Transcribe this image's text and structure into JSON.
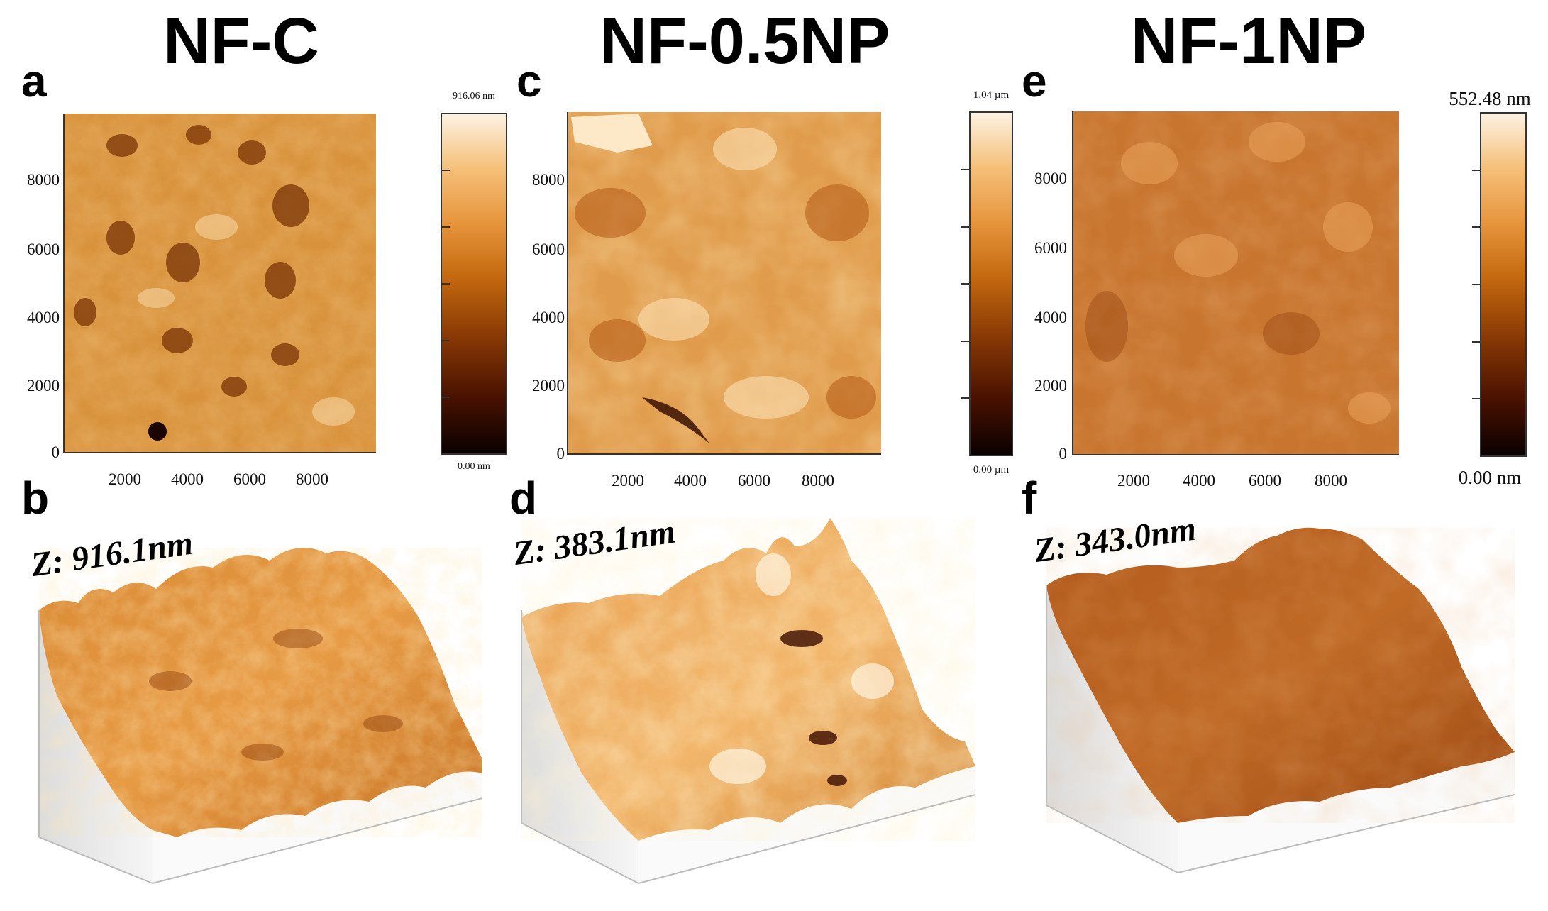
{
  "panels": [
    {
      "title": "NF-C",
      "map_label": "a",
      "surface_label": "b",
      "z_range_label": "Z: 916.1nm",
      "colorbar": {
        "max": "916.06 nm",
        "min": "0.00 nm"
      },
      "y_ticks": [
        "8000",
        "6000",
        "4000",
        "2000",
        "0"
      ],
      "x_ticks": [
        "2000",
        "4000",
        "6000",
        "8000"
      ]
    },
    {
      "title": "NF-0.5NP",
      "map_label": "c",
      "surface_label": "d",
      "z_range_label": "Z: 383.1nm",
      "colorbar": {
        "max": "1.04 µm",
        "min": "0.00 µm"
      },
      "y_ticks": [
        "8000",
        "6000",
        "4000",
        "2000",
        "0"
      ],
      "x_ticks": [
        "2000",
        "4000",
        "6000",
        "8000"
      ]
    },
    {
      "title": "NF-1NP",
      "map_label": "e",
      "surface_label": "f",
      "z_range_label": "Z: 343.0nm",
      "colorbar": {
        "max": "552.48 nm",
        "min": "0.00 nm"
      },
      "y_ticks": [
        "8000",
        "6000",
        "4000",
        "2000",
        "0"
      ],
      "x_ticks": [
        "2000",
        "4000",
        "6000",
        "8000"
      ]
    }
  ],
  "colors": {
    "colormap": [
      "#0a0000",
      "#4a1200",
      "#8a3a05",
      "#c4690f",
      "#e7953d",
      "#f5c07a",
      "#fdf3e3"
    ],
    "nfc_map": "#d9923c",
    "nf05_map": "#e19e4f",
    "nf1_map": "#c8752f"
  }
}
